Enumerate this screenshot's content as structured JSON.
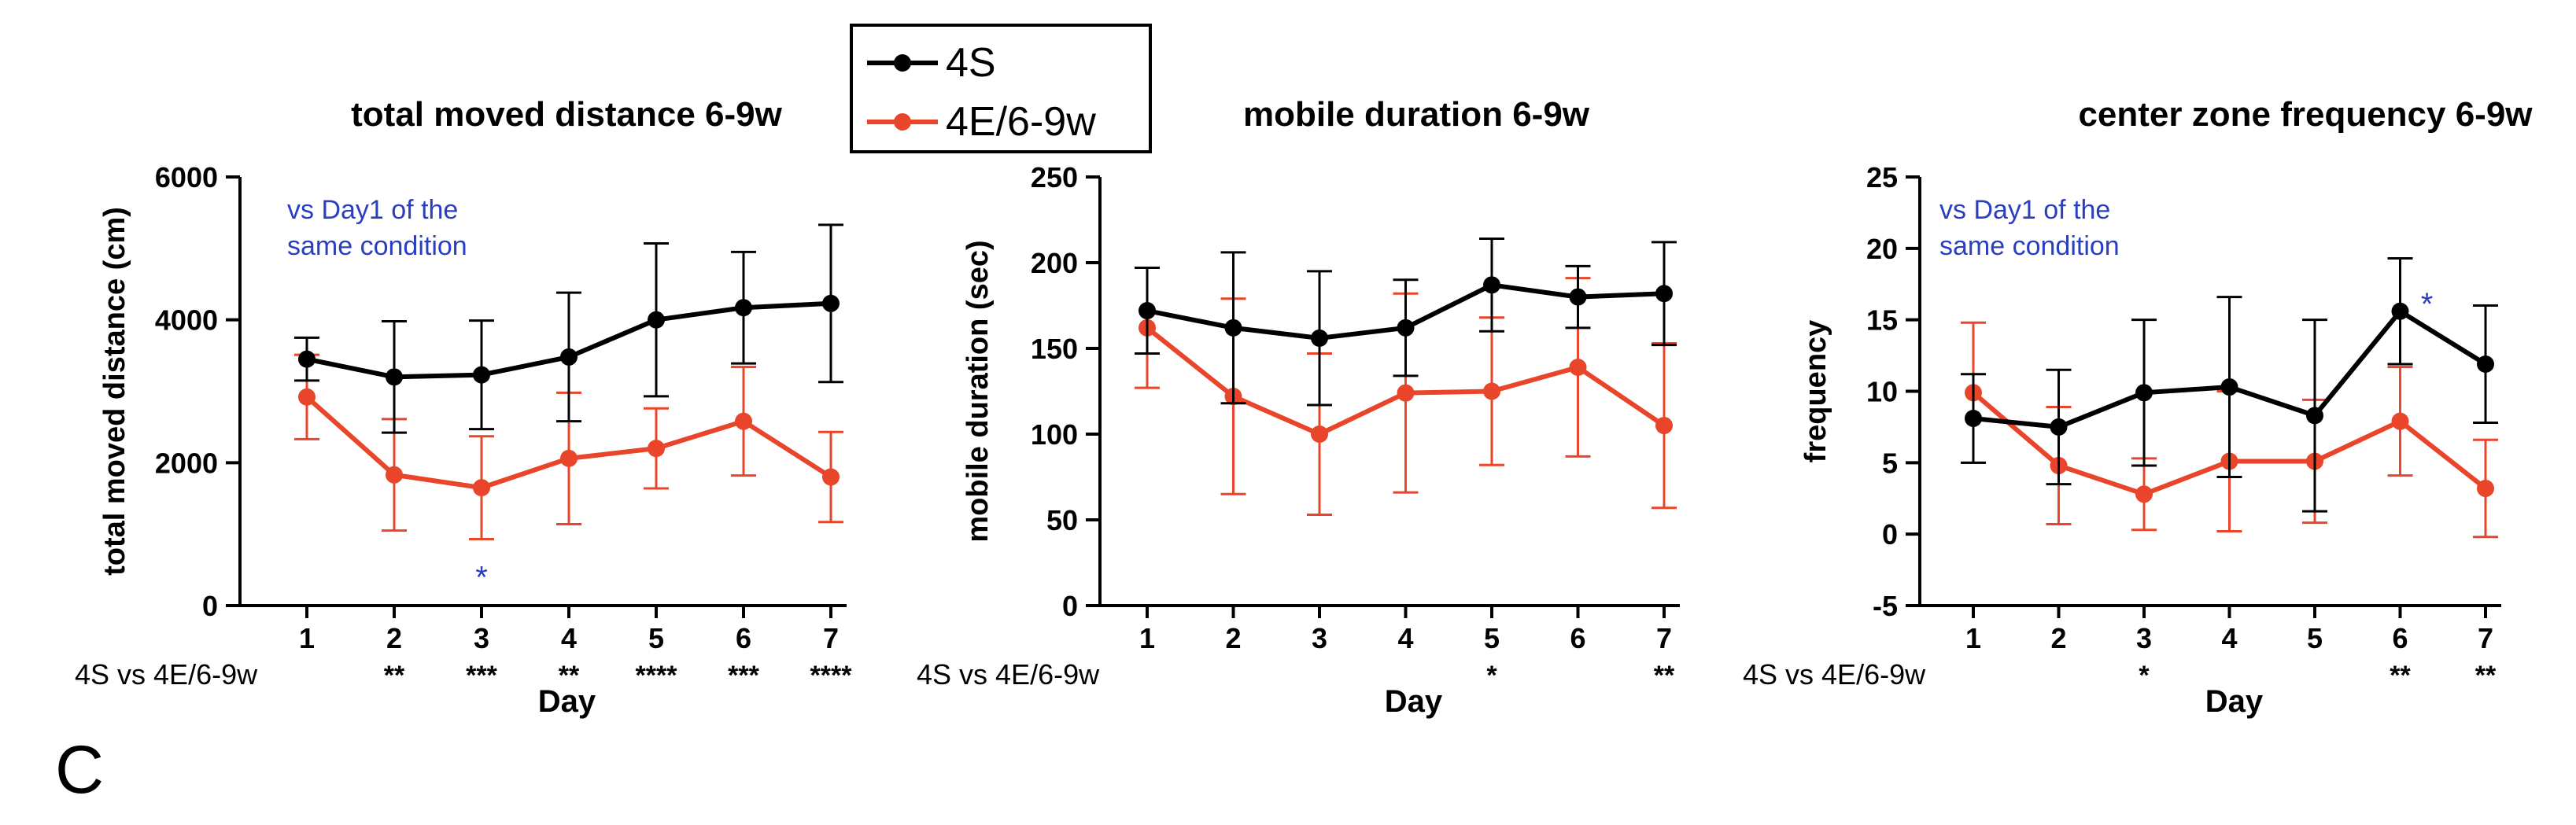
{
  "panel_label": "C",
  "legend": {
    "items": [
      {
        "name": "4S",
        "color": "#000000"
      },
      {
        "name": "4E/6-9w",
        "color": "#e8452a"
      }
    ]
  },
  "chart_data": [
    {
      "type": "line",
      "title": "total moved distance 6-9w",
      "xlabel": "Day",
      "ylabel": "total moved distance (cm)",
      "ylim": [
        0,
        6000
      ],
      "yticks": [
        "0",
        "2000",
        "4000",
        "6000"
      ],
      "categories": [
        "1",
        "2",
        "3",
        "4",
        "5",
        "6",
        "7"
      ],
      "series": [
        {
          "name": "4S",
          "color": "#000000",
          "values": [
            3450,
            3200,
            3230,
            3480,
            4000,
            4170,
            4230
          ],
          "err": [
            300,
            780,
            760,
            900,
            1070,
            780,
            1100
          ]
        },
        {
          "name": "4E/6-9w",
          "color": "#e8452a",
          "values": [
            2920,
            1830,
            1650,
            2060,
            2200,
            2580,
            1800
          ],
          "err": [
            590,
            780,
            720,
            920,
            560,
            760,
            630
          ]
        }
      ],
      "annotation": "vs Day1 of the\nsame condition",
      "day_sig": [
        {
          "day": "3",
          "label": "*",
          "series": "4E/6-9w"
        }
      ],
      "comparison_label": "4S vs 4E/6-9w",
      "comparison_stars": [
        "",
        "**",
        "***",
        "**",
        "****",
        "***",
        "****"
      ]
    },
    {
      "type": "line",
      "title": "mobile duration 6-9w",
      "xlabel": "Day",
      "ylabel": "mobile duration (sec)",
      "ylim": [
        0,
        250
      ],
      "yticks": [
        "0",
        "50",
        "100",
        "150",
        "200",
        "250"
      ],
      "categories": [
        "1",
        "2",
        "3",
        "4",
        "5",
        "6",
        "7"
      ],
      "series": [
        {
          "name": "4S",
          "color": "#000000",
          "values": [
            172,
            162,
            156,
            162,
            187,
            180,
            182
          ],
          "err": [
            25,
            44,
            39,
            28,
            27,
            18,
            30
          ]
        },
        {
          "name": "4E/6-9w",
          "color": "#e8452a",
          "values": [
            162,
            122,
            100,
            124,
            125,
            139,
            105
          ],
          "err": [
            35,
            57,
            47,
            58,
            43,
            52,
            48
          ]
        }
      ],
      "annotation": "",
      "day_sig": [],
      "comparison_label": "4S vs 4E/6-9w",
      "comparison_stars": [
        "",
        "",
        "",
        "",
        "*",
        "",
        "**"
      ]
    },
    {
      "type": "line",
      "title": "center zone frequency 6-9w",
      "xlabel": "Day",
      "ylabel": "frequency",
      "ylim": [
        -5,
        25
      ],
      "yticks": [
        "-5",
        "0",
        "5",
        "10",
        "15",
        "20",
        "25"
      ],
      "categories": [
        "1",
        "2",
        "3",
        "4",
        "5",
        "6",
        "7"
      ],
      "series": [
        {
          "name": "4S",
          "color": "#000000",
          "values": [
            8.1,
            7.5,
            9.9,
            10.3,
            8.3,
            15.6,
            11.9
          ],
          "err": [
            3.1,
            4.0,
            5.1,
            6.3,
            6.7,
            3.7,
            4.1
          ]
        },
        {
          "name": "4E/6-9w",
          "color": "#e8452a",
          "values": [
            9.9,
            4.8,
            2.8,
            5.1,
            5.1,
            7.9,
            3.2
          ],
          "err": [
            4.9,
            4.1,
            2.5,
            4.9,
            4.3,
            3.8,
            3.4
          ]
        }
      ],
      "annotation": "vs Day1 of the\nsame condition",
      "day_sig": [
        {
          "day": "6",
          "label": "*",
          "series": "4S"
        }
      ],
      "comparison_label": "4S vs 4E/6-9w",
      "comparison_stars": [
        "",
        "",
        "*",
        "",
        "",
        "**",
        "**"
      ]
    }
  ]
}
